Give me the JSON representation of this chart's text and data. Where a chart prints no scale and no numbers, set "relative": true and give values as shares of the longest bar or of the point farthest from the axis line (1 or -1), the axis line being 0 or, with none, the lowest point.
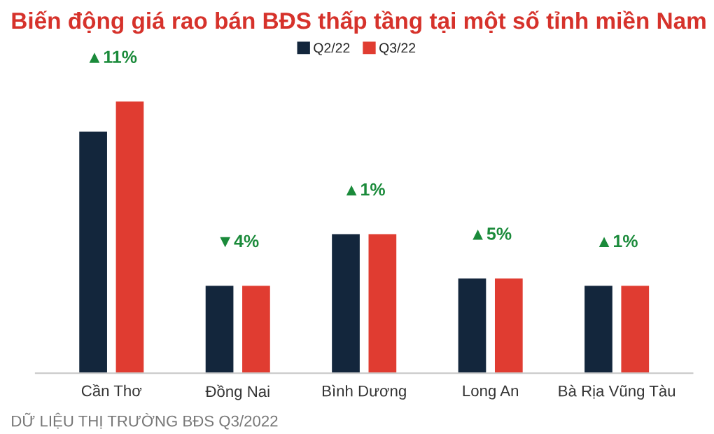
{
  "chart_data": {
    "type": "bar",
    "title": "Biến động giá rao bán BĐS thấp tầng tại một số tỉnh miền Nam",
    "categories": [
      "Cần Thơ",
      "Đồng Nai",
      "Bình Dương",
      "Long An",
      "Bà Rịa Vũng Tàu"
    ],
    "relative": true,
    "series": [
      {
        "name": "Q2/22",
        "color": "#13263c",
        "values": [
          0.889,
          0.322,
          0.512,
          0.349,
          0.322
        ]
      },
      {
        "name": "Q3/22",
        "color": "#e03c31",
        "values": [
          1,
          0.322,
          0.512,
          0.349,
          0.322
        ]
      }
    ],
    "annotations": [
      {
        "text": "▲11%",
        "x": "Cần Thơ",
        "y": 1
      },
      {
        "text": "▼4%",
        "x": "Đồng Nai",
        "y": 0.322
      },
      {
        "text": "▲1%",
        "x": "Bình Dương",
        "y": 0.512
      },
      {
        "text": "▲5%",
        "x": "Long An",
        "y": 0.349
      },
      {
        "text": "▲1%",
        "x": "Bà Rịa Vũng Tàu",
        "y": 0.322
      },
      "DỮ LIỆU THỊ TRƯỜNG BĐS Q3/2022"
    ],
    "legend": "top",
    "grid": false
  }
}
